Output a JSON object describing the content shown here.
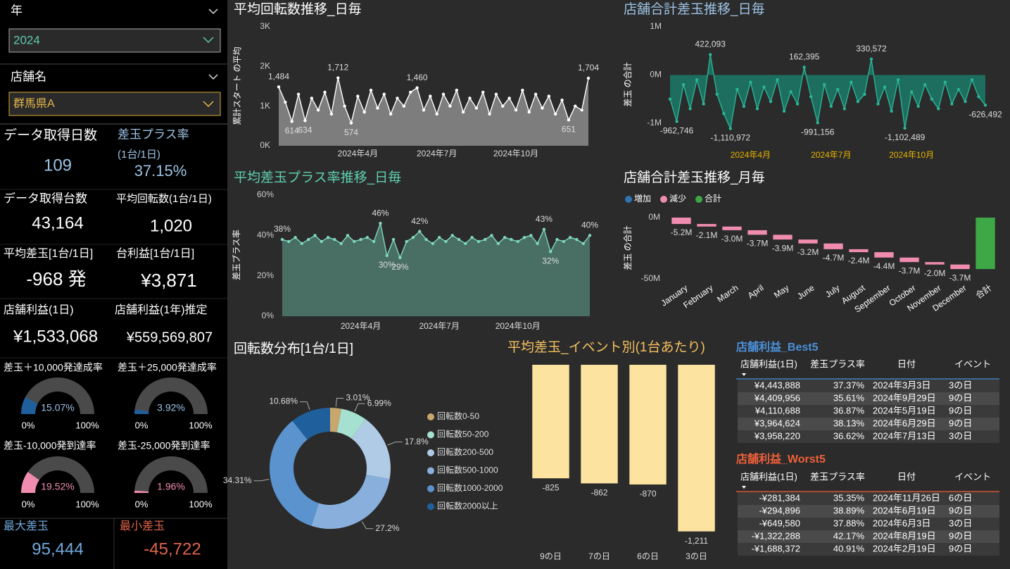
{
  "filters": [
    {
      "label": "年",
      "value": "2024"
    },
    {
      "label": "店舗名",
      "value": "群馬県A"
    }
  ],
  "kpis": [
    {
      "label": "データ取得日数",
      "value": "109"
    },
    {
      "label": "差玉プラス率",
      "sublabel": "(1台/1日)",
      "value": "37.15%"
    },
    {
      "label": "データ取得台数",
      "value": "43,164"
    },
    {
      "label": "平均回転数(1台/1日)",
      "value": "1,020"
    },
    {
      "label": "平均差玉[1台/1日]",
      "value": "-968 発"
    },
    {
      "label": "台利益[1台/1日]",
      "value": "¥3,871"
    },
    {
      "label": "店舗利益(1日)",
      "value": "¥1,533,068"
    },
    {
      "label": "店舗利益(1年)推定",
      "value": "¥559,569,807"
    }
  ],
  "gauges": [
    {
      "type": "gauge",
      "title": "差玉＋10,000発達成率",
      "values": [
        15.07
      ],
      "value_labels": [
        "15.07%"
      ],
      "color": "#1f5f9c",
      "label_color": "#9dc3e6",
      "ylim": [
        0,
        100
      ],
      "yticks": [
        {
          "value": 0,
          "label": "0%"
        },
        {
          "value": 100,
          "label": "100%"
        }
      ]
    },
    {
      "type": "gauge",
      "title": "差玉＋25,000発達成率",
      "values": [
        3.92
      ],
      "value_labels": [
        "3.92%"
      ],
      "color": "#1f5f9c",
      "label_color": "#9dc3e6",
      "ylim": [
        0,
        100
      ],
      "yticks": [
        {
          "value": 0,
          "label": "0%"
        },
        {
          "value": 100,
          "label": "100%"
        }
      ]
    },
    {
      "type": "gauge",
      "title": "差玉-10,000発到達率",
      "values": [
        19.52
      ],
      "value_labels": [
        "19.52%"
      ],
      "color": "#f08cb0",
      "label_color": "#f08cb0",
      "ylim": [
        0,
        100
      ],
      "yticks": [
        {
          "value": 0,
          "label": "0%"
        },
        {
          "value": 100,
          "label": "100%"
        }
      ]
    },
    {
      "type": "gauge",
      "title": "差玉-25,000発到達率",
      "values": [
        1.96
      ],
      "value_labels": [
        "1.96%"
      ],
      "color": "#f08cb0",
      "label_color": "#f08cb0",
      "ylim": [
        0,
        100
      ],
      "yticks": [
        {
          "value": 0,
          "label": "0%"
        },
        {
          "value": 100,
          "label": "100%"
        }
      ]
    }
  ],
  "extremes": [
    {
      "label": "最大差玉",
      "value": "95,444"
    },
    {
      "label": "最小差玉",
      "value": "-45,722"
    }
  ],
  "chart_data": [
    {
      "type": "area",
      "title": "平均回転数推移_日毎",
      "y_label": "累計スタート の平均",
      "categories": [
        null,
        null,
        null,
        null,
        null,
        null,
        null,
        null,
        null,
        null,
        null,
        null,
        "2024年4月",
        null,
        null,
        null,
        null,
        null,
        null,
        null,
        null,
        null,
        null,
        null,
        "2024年7月",
        null,
        null,
        null,
        null,
        null,
        null,
        null,
        null,
        null,
        null,
        null,
        "2024年10月",
        null,
        null,
        null,
        null,
        null,
        null,
        null,
        null,
        null,
        null,
        null
      ],
      "values": [
        1484,
        1100,
        614,
        1300,
        634,
        1200,
        900,
        1350,
        800,
        1712,
        1000,
        574,
        1250,
        850,
        1400,
        950,
        1300,
        800,
        1200,
        1000,
        1350,
        1460,
        900,
        1250,
        800,
        1300,
        1000,
        1400,
        850,
        1200,
        950,
        1350,
        800,
        1300,
        1000,
        1200,
        900,
        1400,
        850,
        1300,
        950,
        1250,
        800,
        1150,
        651,
        1000,
        900,
        1704
      ],
      "value_labels": [
        "1,484",
        null,
        "614",
        null,
        "634",
        null,
        null,
        null,
        null,
        "1,712",
        null,
        "574",
        null,
        null,
        null,
        null,
        null,
        null,
        null,
        null,
        null,
        "1,460",
        null,
        null,
        null,
        null,
        null,
        null,
        null,
        null,
        null,
        null,
        null,
        null,
        null,
        null,
        null,
        null,
        null,
        null,
        null,
        null,
        null,
        null,
        "651",
        null,
        null,
        "1,704"
      ],
      "line_color": "#ffffff",
      "fill_color": "#8c8c8c",
      "axis_color": "#dddddd",
      "ylim": [
        0,
        3000
      ],
      "yticks": [
        {
          "value": 0,
          "label": "0K"
        },
        {
          "value": 1000,
          "label": "1K"
        },
        {
          "value": 2000,
          "label": "2K"
        },
        {
          "value": 3000,
          "label": "3K"
        }
      ]
    },
    {
      "type": "area",
      "title": "店舗合計差玉推移_日毎",
      "y_label": "差玉 の合計",
      "categories": [
        null,
        null,
        null,
        null,
        null,
        null,
        null,
        null,
        null,
        null,
        null,
        null,
        "2024年4月",
        null,
        null,
        null,
        null,
        null,
        null,
        null,
        null,
        null,
        null,
        null,
        "2024年7月",
        null,
        null,
        null,
        null,
        null,
        null,
        null,
        null,
        null,
        null,
        null,
        "2024年10月",
        null,
        null,
        null,
        null,
        null,
        null,
        null,
        null,
        null,
        null,
        null
      ],
      "values": [
        -500000,
        -962746,
        -200000,
        -700000,
        -100000,
        -600000,
        422093,
        -400000,
        -800000,
        -1110972,
        -300000,
        -650000,
        -150000,
        -700000,
        -250000,
        -550000,
        -100000,
        -750000,
        -350000,
        -600000,
        162395,
        -450000,
        -991156,
        -200000,
        -650000,
        -300000,
        -700000,
        -150000,
        -550000,
        -400000,
        330572,
        -600000,
        -250000,
        -750000,
        -100000,
        -1102489,
        -350000,
        -650000,
        -200000,
        -500000,
        -700000,
        -150000,
        -600000,
        -300000,
        -550000,
        -100000,
        -450000,
        -626492
      ],
      "value_labels": [
        null,
        "-962,746",
        null,
        null,
        null,
        null,
        "422,093",
        null,
        null,
        "-1,110,972",
        null,
        null,
        null,
        null,
        null,
        null,
        null,
        null,
        null,
        null,
        "162,395",
        null,
        "-991,156",
        null,
        null,
        null,
        null,
        null,
        null,
        null,
        "330,572",
        null,
        null,
        null,
        null,
        "-1,102,489",
        null,
        null,
        null,
        null,
        null,
        null,
        null,
        null,
        null,
        null,
        null,
        "-626,492"
      ],
      "line_color": "#2ab596",
      "fill_color": "#1b7a68",
      "axis_color": "#e8b400",
      "ylim": [
        -1300000,
        1000000
      ],
      "yticks": [
        {
          "value": -1000000,
          "label": "-1M"
        },
        {
          "value": 0,
          "label": "0M"
        },
        {
          "value": 1000000,
          "label": "1M"
        }
      ]
    },
    {
      "type": "area",
      "title": "平均差玉プラス率推移_日毎",
      "y_label": "差玉プラス率",
      "categories": [
        null,
        null,
        null,
        null,
        null,
        null,
        null,
        null,
        null,
        null,
        null,
        null,
        "2024年4月",
        null,
        null,
        null,
        null,
        null,
        null,
        null,
        null,
        null,
        null,
        null,
        "2024年7月",
        null,
        null,
        null,
        null,
        null,
        null,
        null,
        null,
        null,
        null,
        null,
        "2024年10月",
        null,
        null,
        null,
        null,
        null,
        null,
        null,
        null,
        null,
        null,
        null
      ],
      "values": [
        38,
        37,
        39,
        36,
        38,
        40,
        37,
        39,
        38,
        36,
        40,
        37,
        38,
        39,
        37,
        46,
        30,
        38,
        29,
        37,
        39,
        42,
        38,
        36,
        39,
        37,
        40,
        38,
        36,
        39,
        37,
        38,
        40,
        36,
        39,
        38,
        37,
        39,
        40,
        36,
        43,
        32,
        38,
        37,
        39,
        38,
        36,
        40
      ],
      "value_labels": [
        "38%",
        null,
        null,
        null,
        null,
        null,
        null,
        null,
        null,
        null,
        null,
        null,
        null,
        null,
        null,
        "46%",
        "30%",
        null,
        "29%",
        null,
        null,
        "42%",
        null,
        null,
        null,
        null,
        null,
        null,
        null,
        null,
        null,
        null,
        null,
        null,
        null,
        null,
        null,
        null,
        null,
        null,
        "43%",
        "32%",
        null,
        null,
        null,
        null,
        null,
        "40%"
      ],
      "line_color": "#7fd8c0",
      "fill_color": "#4f7a6e",
      "axis_color": "#dddddd",
      "ylim": [
        0,
        60
      ],
      "yticks": [
        {
          "value": 0,
          "label": "0%"
        },
        {
          "value": 20,
          "label": "20%"
        },
        {
          "value": 40,
          "label": "40%"
        },
        {
          "value": 60,
          "label": "60%"
        }
      ]
    },
    {
      "type": "waterfall",
      "title": "店舗合計差玉推移_月毎",
      "y_label": "差玉 の合計",
      "categories": [
        "January",
        "February",
        "March",
        "April",
        "May",
        "June",
        "July",
        "August",
        "September",
        "October",
        "November",
        "December",
        "合計"
      ],
      "values": [
        -5200000,
        -2100000,
        -3000000,
        -3700000,
        -3900000,
        -3200000,
        -4700000,
        -2400000,
        -4400000,
        -3700000,
        -2000000,
        -3700000,
        -42000000
      ],
      "value_labels": [
        "-5.2M",
        "-2.1M",
        "-3.0M",
        "-3.7M",
        "-3.9M",
        "-3.2M",
        "-4.7M",
        "-2.4M",
        "-4.4M",
        "-3.7M",
        "-2.0M",
        "-3.7M",
        null
      ],
      "legend": [
        {
          "name": "増加",
          "color": "#2e75b6"
        },
        {
          "name": "減少",
          "color": "#f08cb0"
        },
        {
          "name": "合計",
          "color": "#3da845"
        }
      ],
      "ylim": [
        -50000000,
        0
      ],
      "yticks": [
        {
          "value": -50000000,
          "label": "-50M"
        },
        {
          "value": 0,
          "label": "0M"
        }
      ]
    },
    {
      "type": "donut",
      "title": "回転数分布[1台/1日]",
      "categories": [
        "回転数0-50",
        "回転数50-200",
        "回転数200-500",
        "回転数500-1000",
        "回転数1000-2000",
        "回転数2000以上"
      ],
      "values": [
        3.01,
        6.99,
        17.8,
        27.2,
        34.31,
        10.68
      ],
      "value_labels": [
        "3.01%",
        "6.99%",
        "17.8%",
        "27.2%",
        "34.31%",
        "10.68%"
      ],
      "colors": [
        "#c8a66e",
        "#a5e0d0",
        "#b0cbe6",
        "#89b0dc",
        "#5b93cf",
        "#1f5f9c"
      ]
    },
    {
      "type": "bar",
      "title": "平均差玉_イベント別(1台あたり)",
      "categories": [
        "9の日",
        "7の日",
        "6の日",
        "3の日"
      ],
      "values": [
        -825,
        -862,
        -870,
        -1211
      ],
      "value_labels": [
        "-825",
        "-862",
        "-870",
        "-1,211"
      ],
      "color": "#fde3a0",
      "ylim": [
        -1300,
        0
      ]
    }
  ],
  "tables": [
    {
      "title": "店舗利益_Best5",
      "color": "#4a90d9",
      "headers": [
        "店舗利益(1日)",
        "差玉プラス率",
        "日付",
        "イベント"
      ],
      "rows": [
        [
          "¥4,443,888",
          "37.37%",
          "2024年3月3日",
          "3の日"
        ],
        [
          "¥4,409,956",
          "35.61%",
          "2024年9月29日",
          "9の日"
        ],
        [
          "¥4,110,688",
          "36.87%",
          "2024年5月19日",
          "9の日"
        ],
        [
          "¥3,964,624",
          "38.13%",
          "2024年6月29日",
          "9の日"
        ],
        [
          "¥3,958,220",
          "36.62%",
          "2024年7月13日",
          "3の日"
        ]
      ]
    },
    {
      "title": "店舗利益_Worst5",
      "color": "#f0603a",
      "headers": [
        "店舗利益(1日)",
        "差玉プラス率",
        "日付",
        "イベント"
      ],
      "rows": [
        [
          "-¥281,384",
          "35.35%",
          "2024年11月26日",
          "6の日"
        ],
        [
          "-¥294,896",
          "38.89%",
          "2024年6月19日",
          "9の日"
        ],
        [
          "-¥649,580",
          "37.88%",
          "2024年6月3日",
          "3の日"
        ],
        [
          "-¥1,322,288",
          "42.17%",
          "2024年8月19日",
          "9の日"
        ],
        [
          "-¥1,688,372",
          "40.91%",
          "2024年2月19日",
          "9の日"
        ]
      ]
    }
  ]
}
